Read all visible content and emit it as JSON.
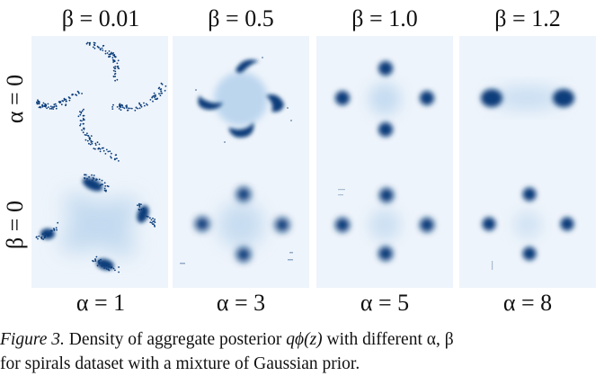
{
  "top_labels": [
    "β = 0.01",
    "β = 0.5",
    "β = 1.0",
    "β = 1.2"
  ],
  "row_labels": [
    "α = 0",
    "β = 0"
  ],
  "bottom_labels": [
    "α = 1",
    "α = 3",
    "α = 5",
    "α = 8"
  ],
  "caption": {
    "figure_number": "Figure 3.",
    "line1_prefix": " Density of aggregate posterior ",
    "posterior_symbol": "qϕ(z)",
    "line1_suffix": " with different α, β",
    "line2": "for spirals dataset with a mixture of Gaussian prior."
  },
  "colors": {
    "panel_background": "#eef4fb",
    "density_dark": "#0b3d7a",
    "density_light": "#9cc3e6"
  },
  "panels": [
    {
      "row": "α = 0",
      "column": "β = 0.01",
      "pattern": "spiral-scatter"
    },
    {
      "row": "α = 0",
      "column": "β = 0.5",
      "pattern": "pinwheel-arms"
    },
    {
      "row": "α = 0",
      "column": "β = 1.0",
      "pattern": "four-blobs"
    },
    {
      "row": "α = 0",
      "column": "β = 1.2",
      "pattern": "two-blobs"
    },
    {
      "row": "β = 0",
      "column": "α = 1",
      "pattern": "spiral-smear"
    },
    {
      "row": "β = 0",
      "column": "α = 3",
      "pattern": "four-blobs-diffuse"
    },
    {
      "row": "β = 0",
      "column": "α = 5",
      "pattern": "four-blobs"
    },
    {
      "row": "β = 0",
      "column": "α = 8",
      "pattern": "four-blobs-tight"
    }
  ]
}
